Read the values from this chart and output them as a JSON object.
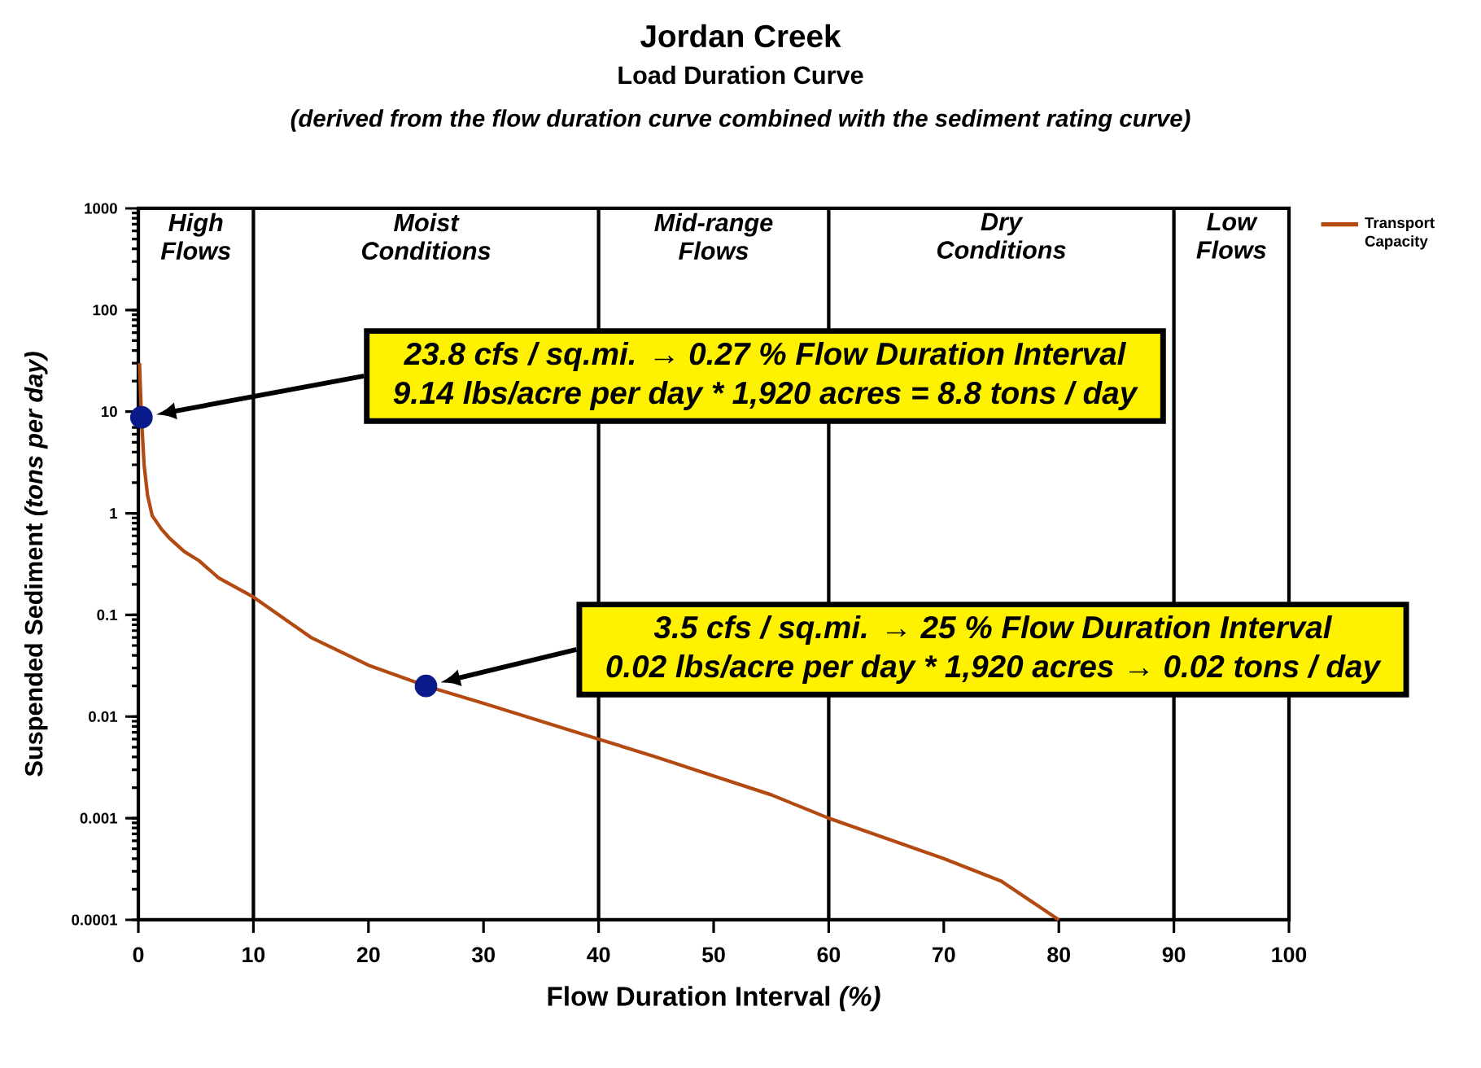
{
  "chart_data": {
    "type": "line",
    "title": "Jordan Creek",
    "subtitle": "Load Duration Curve",
    "xlabel": "Flow Duration Interval *(%)*",
    "ylabel": "Suspended Sediment   *(tons per day)*",
    "annotations": [
      "(derived from the flow duration curve combined with the sediment rating curve)",
      "High Flows",
      "Moist Conditions",
      "Mid-range Flows",
      "Dry Conditions",
      "Low Flows",
      "23.8 cfs / sq.mi. → 0.27 % Flow Duration Interval",
      "9.14 lbs/acre per day * 1,920 acres =  8.8 tons / day",
      "3.5 cfs / sq.mi. → 25 % Flow Duration Interval",
      "0.02 lbs/acre per day * 1,920 acres  → 0.02 tons / day"
    ],
    "log": "y",
    "xlim": [
      0,
      100
    ],
    "ylim": [
      0.0001,
      1000
    ],
    "xticks": [
      0,
      10,
      20,
      30,
      40,
      50,
      60,
      70,
      80,
      90,
      100
    ],
    "yticks": [
      {
        "value": 0.0001,
        "label": "0.0001"
      },
      {
        "value": 0.001,
        "label": "0.001"
      },
      {
        "value": 0.01,
        "label": "0.01"
      },
      {
        "value": 0.1,
        "label": "0.1"
      },
      {
        "value": 1,
        "label": "1"
      },
      {
        "value": 10,
        "label": "10"
      },
      {
        "value": 100,
        "label": "100"
      },
      {
        "value": 1000,
        "label": "1000"
      }
    ],
    "legend": "top right",
    "ref_lines": [
      {
        "axis": "x",
        "value": 10
      },
      {
        "axis": "x",
        "value": 40
      },
      {
        "axis": "x",
        "value": 60
      },
      {
        "axis": "x",
        "value": 90
      }
    ],
    "series": [
      {
        "name": "Transport Capacity",
        "type": "line",
        "color": "#b34a12",
        "marker": "none",
        "line_style": "solid",
        "x": [
          0.1,
          0.27,
          0.5,
          0.8,
          1.2,
          2,
          2.7,
          4,
          5.3,
          7,
          10,
          15,
          20,
          25,
          30,
          40,
          45,
          50,
          55,
          60,
          70,
          75,
          80
        ],
        "values": [
          30,
          8.8,
          3,
          1.5,
          0.95,
          0.7,
          0.57,
          0.42,
          0.34,
          0.23,
          0.15,
          0.06,
          0.032,
          0.02,
          0.0135,
          0.006,
          0.004,
          0.0026,
          0.0017,
          0.001,
          0.0004,
          0.00024,
          0.0001
        ]
      },
      {
        "type": "scatter",
        "color": "#0b1a8a",
        "marker": "circle",
        "x": [
          0.27,
          25
        ],
        "values": [
          8.8,
          0.02
        ]
      }
    ]
  }
}
